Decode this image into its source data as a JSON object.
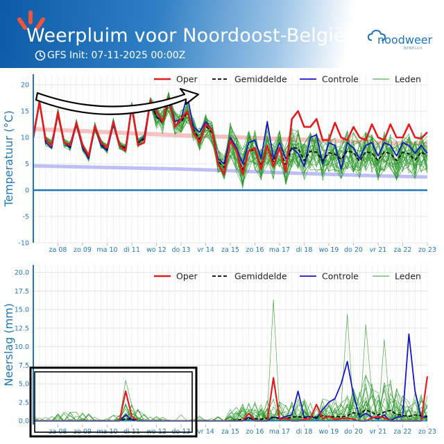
{
  "header": {
    "title": "Weerpluim voor Noordoost-België",
    "init_text": "GFS Init: 07-11-2025 00:00Z",
    "brand_name": "noodweer",
    "brand_sub": "BENELUX"
  },
  "colors": {
    "oper": "#e41a1c",
    "mean": "#000000",
    "control": "#1515c8",
    "members": "#2e9a2e",
    "axis": "#1f77b4",
    "brand": "#1e73be",
    "sun": "#f0553a"
  },
  "icons": [
    "sun-logo-icon",
    "clock-icon",
    "cloud-logo-icon",
    "trend-arrow-icon",
    "highlight-box"
  ],
  "chart_data": [
    {
      "type": "line",
      "ylabel": "Temperatuur (°C)",
      "ylim": [
        -10,
        22
      ],
      "yticks": [
        -10,
        -5,
        0,
        5,
        10,
        15,
        20
      ],
      "xlim": [
        0,
        64
      ],
      "xtick_positions": [
        4,
        8,
        12,
        16,
        20,
        24,
        28,
        32,
        36,
        40,
        44,
        48,
        52,
        56,
        60,
        64
      ],
      "xtick_labels": [
        "za 08",
        "zo 09",
        "ma 10",
        "di 11",
        "wo 12",
        "do 13",
        "vr 14",
        "za 15",
        "zo 16",
        "ma 17",
        "di 18",
        "wo 19",
        "do 20",
        "vr 21",
        "za 22",
        "zo 23"
      ],
      "legend": [
        "Oper",
        "Gemiddelde",
        "Controle",
        "Leden"
      ],
      "legend_position": "top",
      "grid": true,
      "climate_bands": {
        "upper": [
          [
            0,
            11.6
          ],
          [
            8,
            11.2
          ],
          [
            16,
            10.8
          ],
          [
            24,
            10.4
          ],
          [
            32,
            10.1
          ],
          [
            40,
            9.7
          ],
          [
            48,
            9.4
          ],
          [
            56,
            9.0
          ],
          [
            64,
            8.8
          ]
        ],
        "lower": [
          [
            0,
            4.6
          ],
          [
            8,
            4.4
          ],
          [
            16,
            4.2
          ],
          [
            24,
            4.0
          ],
          [
            32,
            3.7
          ],
          [
            40,
            3.3
          ],
          [
            48,
            3.0
          ],
          [
            56,
            2.7
          ],
          [
            64,
            2.5
          ]
        ]
      },
      "series": [
        {
          "name": "Oper",
          "values": [
            10,
            16.8,
            9.6,
            8.5,
            14.8,
            9,
            8.5,
            12.8,
            8.5,
            6.5,
            12.2,
            9,
            8,
            13,
            8.5,
            7.5,
            16,
            8.5,
            9,
            17,
            15,
            13,
            17.5,
            12,
            13.5,
            15,
            11,
            9,
            12.5,
            11.5,
            5,
            3,
            9.5,
            7.5,
            3,
            7.5,
            8,
            4,
            8.5,
            4.5,
            8,
            3.5,
            13.5,
            15,
            12,
            12,
            13.5,
            9.5,
            9.5,
            12.8,
            10,
            9.5,
            12,
            10,
            9.5,
            12.5,
            10,
            9.5,
            12.5,
            10,
            10,
            12.5,
            10,
            9.8,
            11
          ]
        },
        {
          "name": "Gemiddelde",
          "values": [
            10.2,
            16.8,
            9.4,
            8.7,
            14.6,
            9,
            8.3,
            12.6,
            8.3,
            6.2,
            12,
            8.8,
            7.8,
            12.9,
            8.6,
            7.8,
            15.9,
            9,
            9.7,
            16.7,
            13.9,
            12.8,
            16.8,
            12.7,
            12.9,
            14.8,
            11.5,
            9.7,
            12.2,
            10.9,
            5.5,
            4.3,
            9.5,
            7.3,
            3.9,
            7.5,
            7.6,
            4.7,
            8.4,
            5.4,
            7.9,
            4.8,
            8.1,
            7.9,
            5.6,
            7.4,
            7.2,
            5.6,
            7.1,
            6.8,
            5.8,
            7.5,
            7.1,
            5.5,
            7.3,
            7,
            5.6,
            7.3,
            6.9,
            5.6,
            7.2,
            6.9,
            5.7,
            7.2,
            6.6
          ]
        },
        {
          "name": "Controle",
          "values": [
            10,
            17,
            9,
            8,
            14.5,
            9,
            8,
            12.5,
            8,
            6,
            12,
            8.5,
            7.5,
            12.5,
            8.5,
            8,
            16,
            9,
            10,
            17,
            14,
            13,
            17.5,
            13,
            13.5,
            18,
            12,
            11,
            13,
            11.5,
            6,
            5,
            10,
            8,
            5,
            9,
            9.5,
            6,
            13,
            6,
            9,
            6,
            8,
            7,
            4.5,
            10,
            10.5,
            5,
            9,
            8.5,
            4,
            9,
            8,
            6,
            8.5,
            9,
            6.5,
            9,
            8.5,
            6.5,
            9,
            8.5,
            7,
            8.5,
            7
          ]
        }
      ],
      "members_count": 30
    },
    {
      "type": "line",
      "ylabel": "Neerslag (mm)",
      "ylim": [
        -0.5,
        21
      ],
      "yticks": [
        0.0,
        2.5,
        5.0,
        7.5,
        10.0,
        12.5,
        15.0,
        17.5,
        20.0
      ],
      "xlim": [
        0,
        64
      ],
      "xtick_positions": [
        4,
        8,
        12,
        16,
        20,
        24,
        28,
        32,
        36,
        40,
        44,
        48,
        52,
        56,
        60,
        64
      ],
      "xtick_labels": [
        "za 08",
        "zo 09",
        "ma 10",
        "di 11",
        "wo 12",
        "do 13",
        "vr 14",
        "za 15",
        "zo 16",
        "ma 17",
        "di 18",
        "wo 19",
        "do 20",
        "vr 21",
        "za 22",
        "zo 23"
      ],
      "legend": [
        "Oper",
        "Gemiddelde",
        "Controle",
        "Leden"
      ],
      "legend_position": "top",
      "grid": true,
      "series": [
        {
          "name": "Oper",
          "values": [
            0,
            0,
            0,
            0,
            0,
            0,
            0,
            0,
            0,
            0,
            0,
            0,
            0,
            0,
            0,
            4,
            0.6,
            0,
            0,
            0,
            0,
            0,
            0,
            0,
            0,
            0,
            0,
            0,
            0,
            0,
            0,
            0,
            0,
            0,
            0,
            1,
            0,
            0,
            0,
            5.8,
            0.2,
            0.4,
            0,
            0,
            0.2,
            0.3,
            2.2,
            0.3,
            0.6,
            0.2,
            0.3,
            0.4,
            0.2,
            0,
            0,
            0.4,
            0.6,
            0.4,
            0,
            0,
            0,
            0,
            0,
            0,
            6
          ]
        },
        {
          "name": "Gemiddelde",
          "values": [
            0,
            0,
            0,
            0,
            0,
            0,
            0,
            0,
            0,
            0,
            0,
            0,
            0,
            0,
            0,
            0.3,
            0.2,
            0,
            0,
            0,
            0,
            0,
            0,
            0,
            0,
            0,
            0,
            0,
            0,
            0,
            0,
            0,
            0,
            0.1,
            0.2,
            0.3,
            0.3,
            0.2,
            0.4,
            0.5,
            0.4,
            0.3,
            0.5,
            0.6,
            0.4,
            0.6,
            0.5,
            0.7,
            0.5,
            0.6,
            0.5,
            0.7,
            1.1,
            0.9,
            1.5,
            1.1,
            0.8,
            1.2,
            1.4,
            0.9,
            0.7,
            0.6,
            0.8,
            0.7,
            0.6
          ]
        },
        {
          "name": "Controle",
          "values": [
            0,
            0,
            0,
            0,
            0,
            0,
            0,
            0,
            0,
            0,
            0,
            0,
            0,
            0,
            0,
            0.8,
            0.2,
            0,
            0,
            0,
            0,
            0,
            0,
            0,
            0,
            0,
            0,
            0,
            0,
            0,
            0,
            0,
            0,
            0,
            0,
            0.5,
            0,
            0,
            0,
            0.5,
            0.3,
            0.6,
            0.8,
            4,
            0.5,
            0.6,
            0.3,
            1.5,
            2.5,
            3,
            5,
            8,
            3.5,
            0.5,
            1,
            0.5,
            0.3,
            0.8,
            0,
            0.5,
            0.6,
            11.7,
            4,
            0.5,
            0.5
          ]
        }
      ],
      "members_count": 30
    }
  ]
}
